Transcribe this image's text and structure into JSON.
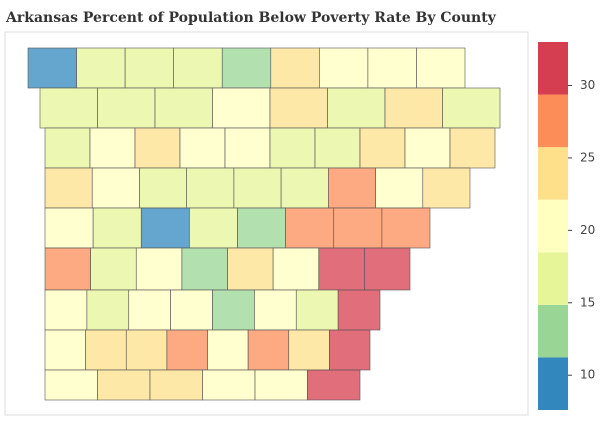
{
  "chart_data": {
    "type": "choropleth",
    "title": "Arkansas Percent of Population Below Poverty Rate By County",
    "values": [
      9,
      17,
      17,
      18,
      13,
      23,
      20,
      20,
      20,
      17,
      18,
      17,
      19,
      23,
      18,
      23,
      18,
      17,
      19,
      24,
      20,
      19,
      17,
      17,
      24,
      20,
      23,
      23,
      20,
      17,
      18,
      17,
      17,
      28,
      20,
      24,
      20,
      18,
      9,
      17,
      13,
      28,
      27,
      27,
      27,
      18,
      20,
      13,
      23,
      20,
      31,
      31,
      20,
      17,
      20,
      20,
      13,
      20,
      17,
      31,
      20,
      23,
      24,
      27,
      20,
      27,
      24,
      31,
      20,
      23,
      23,
      20,
      20,
      31
    ],
    "zlim": [
      7.6,
      33
    ],
    "zticks": [
      10,
      15,
      20,
      25,
      30
    ],
    "colorscale": [
      "#3288bd",
      "#99d594",
      "#e6f598",
      "#ffffbf",
      "#fee08b",
      "#fc8d59",
      "#d53e4f"
    ]
  }
}
